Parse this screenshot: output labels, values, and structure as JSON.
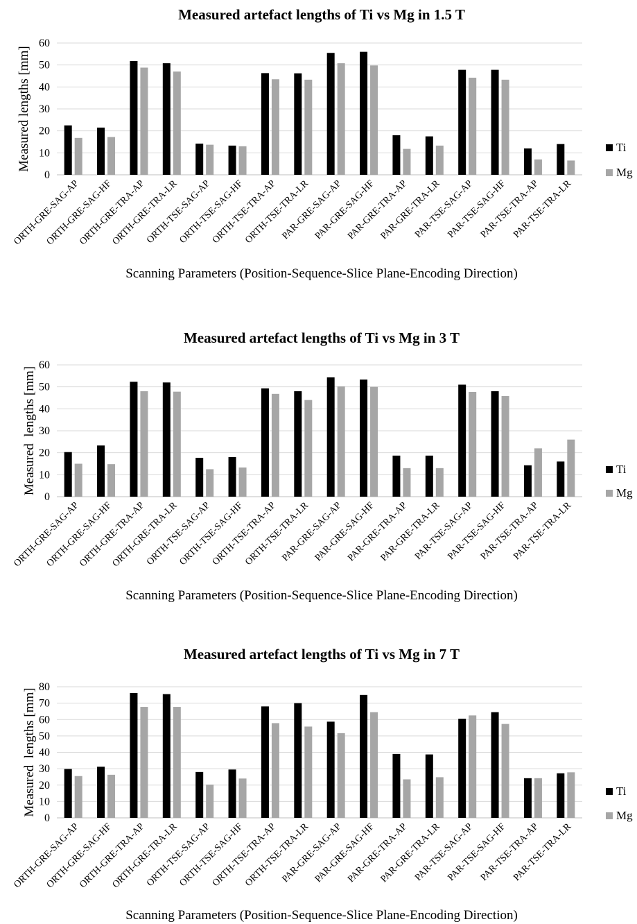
{
  "categories": [
    "ORTH-GRE-SAG-AP",
    "ORTH-GRE-SAG-HF",
    "ORTH-GRE-TRA-AP",
    "ORTH-GRE-TRA-LR",
    "ORTH-TSE-SAG-AP",
    "ORTH-TSE-SAG-HF",
    "ORTH-TSE-TRA-AP",
    "ORTH-TSE-TRA-LR",
    "PAR-GRE-SAG-AP",
    "PAR-GRE-SAG-HF",
    "PAR-GRE-TRA-AP",
    "PAR-GRE-TRA-LR",
    "PAR-TSE-SAG-AP",
    "PAR-TSE-SAG-HF",
    "PAR-TSE-TRA-AP",
    "PAR-TSE-TRA-LR"
  ],
  "chart_data": [
    {
      "type": "bar",
      "title": "Measured artefact lengths of Ti vs Mg in 1.5 T",
      "xlabel": "Scanning Parameters (Position-Sequence-Slice Plane-Encoding Direction)",
      "ylabel": "Measured lengths [mm]",
      "ylim": [
        0,
        60
      ],
      "yticks": [
        0,
        10,
        20,
        30,
        40,
        50,
        60
      ],
      "grid": true,
      "legend_position": "right",
      "series": [
        {
          "name": "Ti",
          "color": "#000000",
          "values": [
            22.5,
            21.5,
            51.8,
            50.8,
            14.2,
            13.3,
            46.3,
            46.2,
            55.5,
            56.0,
            18.0,
            17.5,
            47.8,
            47.8,
            12.0,
            14.0
          ]
        },
        {
          "name": "Mg",
          "color": "#a6a6a6",
          "values": [
            16.8,
            17.2,
            48.8,
            47.0,
            13.7,
            13.0,
            43.5,
            43.3,
            50.8,
            49.8,
            11.8,
            13.3,
            44.2,
            43.3,
            7.0,
            6.5
          ]
        }
      ]
    },
    {
      "type": "bar",
      "title": "Measured artefact lengths of Ti vs Mg in 3 T",
      "xlabel": "Scanning Parameters (Position-Sequence-Slice Plane-Encoding Direction)",
      "ylabel": "Measured  lengths [mm]",
      "ylim": [
        0,
        60
      ],
      "yticks": [
        0,
        10,
        20,
        30,
        40,
        50,
        60
      ],
      "grid": true,
      "legend_position": "right",
      "series": [
        {
          "name": "Ti",
          "color": "#000000",
          "values": [
            20.3,
            23.3,
            52.3,
            52.0,
            17.7,
            18.0,
            49.3,
            48.0,
            54.3,
            53.3,
            18.7,
            18.7,
            51.0,
            48.0,
            14.3,
            16.0
          ]
        },
        {
          "name": "Mg",
          "color": "#a6a6a6",
          "values": [
            15.0,
            14.8,
            48.0,
            47.8,
            12.5,
            13.3,
            46.8,
            44.0,
            50.2,
            50.0,
            13.0,
            13.0,
            47.7,
            45.8,
            22.0,
            26.0
          ]
        }
      ]
    },
    {
      "type": "bar",
      "title": "Measured artefact lengths of Ti vs Mg in 7 T",
      "xlabel": "Scanning Parameters (Position-Sequence-Slice Plane-Encoding Direction)",
      "ylabel": "Measured  lengths [mm]",
      "ylim": [
        0,
        80
      ],
      "yticks": [
        0,
        10,
        20,
        30,
        40,
        50,
        60,
        70,
        80
      ],
      "grid": true,
      "legend_position": "right",
      "series": [
        {
          "name": "Ti",
          "color": "#000000",
          "values": [
            29.8,
            31.2,
            76.2,
            75.5,
            28.0,
            29.5,
            68.0,
            70.0,
            58.7,
            75.0,
            39.0,
            38.7,
            60.5,
            64.5,
            24.2,
            27.2
          ]
        },
        {
          "name": "Mg",
          "color": "#a6a6a6",
          "values": [
            25.5,
            26.3,
            67.7,
            67.7,
            20.3,
            24.0,
            57.8,
            55.7,
            51.7,
            64.5,
            23.5,
            24.8,
            62.5,
            57.3,
            24.2,
            27.8
          ]
        }
      ]
    }
  ]
}
